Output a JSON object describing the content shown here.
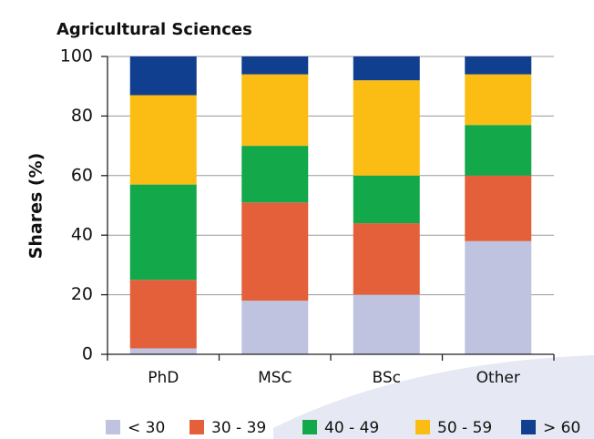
{
  "chart_data": {
    "type": "stacked_bar",
    "title": "Agricultural Sciences",
    "y_label": "Shares (%)",
    "categories": [
      "PhD",
      "MSC",
      "BSc",
      "Other"
    ],
    "series": [
      {
        "name": "< 30",
        "color": "#bfc3df",
        "values": [
          2,
          18,
          20,
          38
        ]
      },
      {
        "name": "30 - 39",
        "color": "#e3603a",
        "values": [
          23,
          33,
          24,
          22
        ]
      },
      {
        "name": "40 - 49",
        "color": "#13a84a",
        "values": [
          32,
          19,
          16,
          17
        ]
      },
      {
        "name": "50 - 59",
        "color": "#fbbd14",
        "values": [
          30,
          24,
          32,
          17
        ]
      },
      {
        "name": "> 60",
        "color": "#113f8f",
        "values": [
          13,
          6,
          8,
          6
        ]
      }
    ],
    "ylim": [
      0,
      100
    ],
    "yticks": [
      0,
      20,
      40,
      60,
      80,
      100
    ],
    "grid": true,
    "legend": "bottom"
  }
}
